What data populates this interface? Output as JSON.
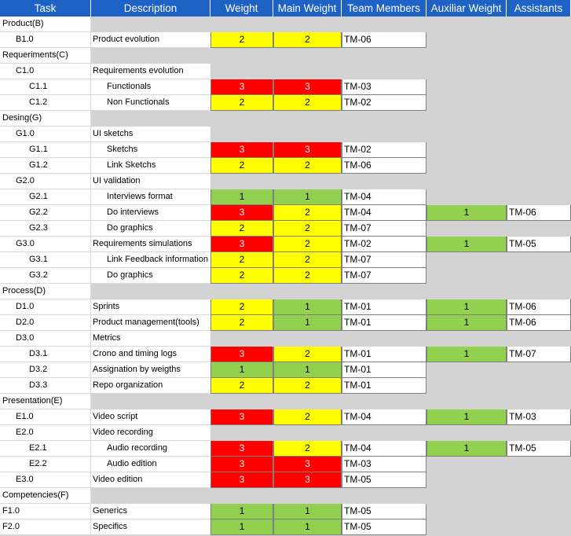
{
  "header": [
    "Task",
    "Description",
    "Weight",
    "Main Weight",
    "Team Members",
    "Auxiliar Weight",
    "Assistants"
  ],
  "colors": {
    "red": "#ff0000",
    "yellow": "#ffff00",
    "green": "#92d050",
    "header_bg": "#1f62c5"
  },
  "rows": [
    {
      "task": "Product(B)",
      "level": 0
    },
    {
      "task": "B1.0",
      "level": 1,
      "description": "Product evolution",
      "weight": "2",
      "weight_color": "yellow",
      "main_weight": "2",
      "main_weight_color": "yellow",
      "team": "TM-06"
    },
    {
      "task": "Requeriments(C)",
      "level": 0
    },
    {
      "task": "C1.0",
      "level": 1,
      "description": "Requirements evolution"
    },
    {
      "task": "C1.1",
      "level": 2,
      "description": "Functionals",
      "weight": "3",
      "weight_color": "red",
      "main_weight": "3",
      "main_weight_color": "red",
      "team": "TM-03"
    },
    {
      "task": "C1.2",
      "level": 2,
      "description": "Non Functionals",
      "weight": "2",
      "weight_color": "yellow",
      "main_weight": "2",
      "main_weight_color": "yellow",
      "team": "TM-02"
    },
    {
      "task": "Desing(G)",
      "level": 0
    },
    {
      "task": "G1.0",
      "level": 1,
      "description": "UI sketchs"
    },
    {
      "task": "G1.1",
      "level": 2,
      "description": "Sketchs",
      "weight": "3",
      "weight_color": "red",
      "main_weight": "3",
      "main_weight_color": "red",
      "team": "TM-02"
    },
    {
      "task": "G1.2",
      "level": 2,
      "description": "Link Sketchs",
      "weight": "2",
      "weight_color": "yellow",
      "main_weight": "2",
      "main_weight_color": "yellow",
      "team": "TM-06"
    },
    {
      "task": "G2.0",
      "level": 1,
      "description": "UI validation"
    },
    {
      "task": "G2.1",
      "level": 2,
      "description": "Interviews format",
      "weight": "1",
      "weight_color": "green",
      "main_weight": "1",
      "main_weight_color": "green",
      "team": "TM-04"
    },
    {
      "task": "G2.2",
      "level": 2,
      "description": "Do interviews",
      "weight": "3",
      "weight_color": "red",
      "main_weight": "2",
      "main_weight_color": "yellow",
      "team": "TM-04",
      "aux": "1",
      "aux_color": "green",
      "assistant": "TM-06"
    },
    {
      "task": "G2.3",
      "level": 2,
      "description": "Do graphics",
      "weight": "2",
      "weight_color": "yellow",
      "main_weight": "2",
      "main_weight_color": "yellow",
      "team": "TM-07"
    },
    {
      "task": "G3.0",
      "level": 1,
      "description": "Requirements simulations",
      "weight": "3",
      "weight_color": "red",
      "main_weight": "2",
      "main_weight_color": "yellow",
      "team": "TM-02",
      "aux": "1",
      "aux_color": "green",
      "assistant": "TM-05"
    },
    {
      "task": "G3.1",
      "level": 2,
      "description": "Link Feedback information",
      "weight": "2",
      "weight_color": "yellow",
      "main_weight": "2",
      "main_weight_color": "yellow",
      "team": "TM-07"
    },
    {
      "task": "G3.2",
      "level": 2,
      "description": "Do graphics",
      "weight": "2",
      "weight_color": "yellow",
      "main_weight": "2",
      "main_weight_color": "yellow",
      "team": "TM-07"
    },
    {
      "task": "Process(D)",
      "level": 0
    },
    {
      "task": "D1.0",
      "level": 1,
      "description": "Sprints",
      "weight": "2",
      "weight_color": "yellow",
      "main_weight": "1",
      "main_weight_color": "green",
      "team": "TM-01",
      "aux": "1",
      "aux_color": "green",
      "assistant": "TM-06"
    },
    {
      "task": "D2.0",
      "level": 1,
      "description": "Product management(tools)",
      "weight": "2",
      "weight_color": "yellow",
      "main_weight": "1",
      "main_weight_color": "green",
      "team": "TM-01",
      "aux": "1",
      "aux_color": "green",
      "assistant": "TM-06"
    },
    {
      "task": "D3.0",
      "level": 1,
      "description": "Metrics"
    },
    {
      "task": "D3.1",
      "level": 2,
      "description": "Crono and timing logs",
      "desc_level": 1,
      "weight": "3",
      "weight_color": "red",
      "main_weight": "2",
      "main_weight_color": "yellow",
      "team": "TM-01",
      "aux": "1",
      "aux_color": "green",
      "assistant": "TM-07"
    },
    {
      "task": "D3.2",
      "level": 2,
      "description": "Assignation by weigths",
      "desc_level": 1,
      "weight": "1",
      "weight_color": "green",
      "main_weight": "1",
      "main_weight_color": "green",
      "team": "TM-01"
    },
    {
      "task": "D3.3",
      "level": 2,
      "description": "Repo organization",
      "desc_level": 1,
      "weight": "2",
      "weight_color": "yellow",
      "main_weight": "2",
      "main_weight_color": "yellow",
      "team": "TM-01"
    },
    {
      "task": "Presentation(E)",
      "level": 0
    },
    {
      "task": "E1.0",
      "level": 1,
      "description": "Video script",
      "weight": "3",
      "weight_color": "red",
      "main_weight": "2",
      "main_weight_color": "yellow",
      "team": "TM-04",
      "aux": "1",
      "aux_color": "green",
      "assistant": "TM-03"
    },
    {
      "task": "E2.0",
      "level": 1,
      "description": "Video recording"
    },
    {
      "task": "E2.1",
      "level": 2,
      "description": "Audio recording",
      "weight": "3",
      "weight_color": "red",
      "main_weight": "2",
      "main_weight_color": "yellow",
      "team": "TM-04",
      "aux": "1",
      "aux_color": "green",
      "assistant": "TM-05"
    },
    {
      "task": "E2.2",
      "level": 2,
      "description": "Audio edition",
      "weight": "3",
      "weight_color": "red",
      "main_weight": "3",
      "main_weight_color": "red",
      "team": "TM-03"
    },
    {
      "task": "E3.0",
      "level": 1,
      "description": "Video edition",
      "weight": "3",
      "weight_color": "red",
      "main_weight": "3",
      "main_weight_color": "red",
      "team": "TM-05"
    },
    {
      "task": "Competencies(F)",
      "level": 0
    },
    {
      "task": "F1.0",
      "level": 0,
      "description": "Generics",
      "weight": "1",
      "weight_color": "green",
      "main_weight": "1",
      "main_weight_color": "green",
      "team": "TM-05"
    },
    {
      "task": "F2.0",
      "level": 0,
      "description": "Specifics",
      "weight": "1",
      "weight_color": "green",
      "main_weight": "1",
      "main_weight_color": "green",
      "team": "TM-05"
    }
  ]
}
